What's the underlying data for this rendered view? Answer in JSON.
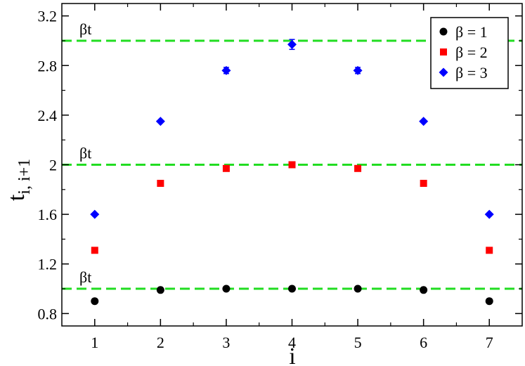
{
  "chart_data": {
    "type": "scatter",
    "xlabel": "i",
    "ylabel": "t",
    "ylabel_sub": "i, i+1",
    "xlim": [
      0.5,
      7.5
    ],
    "ylim": [
      0.7,
      3.3
    ],
    "x_ticks": [
      1,
      2,
      3,
      4,
      5,
      6,
      7
    ],
    "x_tick_labels": [
      "1",
      "2",
      "3",
      "4",
      "5",
      "6",
      "7"
    ],
    "y_ticks": [
      0.8,
      1.2,
      1.6,
      2.0,
      2.4,
      2.8,
      3.2
    ],
    "y_tick_labels": [
      "0.8",
      "1.2",
      "1.6",
      "2",
      "2.4",
      "2.8",
      "3.2"
    ],
    "grid": false,
    "legend_position": "top-right",
    "reference_lines": [
      {
        "y": 1,
        "label": "βt",
        "color": "#22dd22"
      },
      {
        "y": 2,
        "label": "βt",
        "color": "#22dd22"
      },
      {
        "y": 3,
        "label": "βt",
        "color": "#22dd22"
      }
    ],
    "x": [
      1,
      2,
      3,
      4,
      5,
      6,
      7
    ],
    "series": [
      {
        "name": "β = 1",
        "marker": "circle",
        "color": "#000000",
        "values": [
          0.9,
          0.99,
          1.0,
          1.0,
          1.0,
          0.99,
          0.9
        ],
        "errors": [
          0,
          0,
          0,
          0,
          0,
          0,
          0
        ]
      },
      {
        "name": "β = 2",
        "marker": "square",
        "color": "#ff0000",
        "values": [
          1.31,
          1.85,
          1.97,
          2.0,
          1.97,
          1.85,
          1.31
        ],
        "errors": [
          0,
          0,
          0,
          0,
          0,
          0,
          0
        ]
      },
      {
        "name": "β = 3",
        "marker": "diamond",
        "color": "#0000ff",
        "values": [
          1.6,
          2.35,
          2.76,
          2.97,
          2.76,
          2.35,
          1.6
        ],
        "errors": [
          0,
          0,
          0.025,
          0.04,
          0.025,
          0,
          0
        ]
      }
    ]
  }
}
